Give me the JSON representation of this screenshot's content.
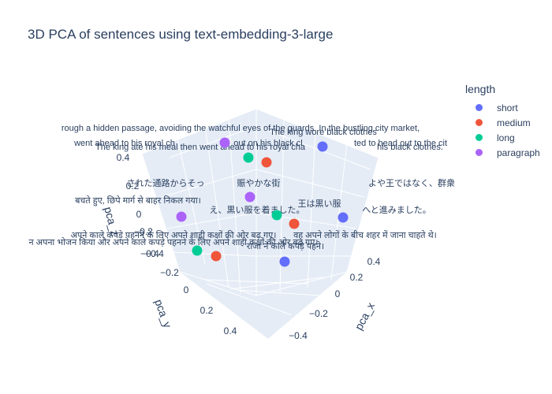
{
  "chart_data": {
    "type": "scatter",
    "title": "3D PCA of sentences using text-embedding-3-large",
    "xlabel": "pca_x",
    "ylabel": "pca_y",
    "zlabel": "pca_z",
    "x_ticks": [
      "0.4",
      "0.2",
      "0",
      "−0.2",
      "−0.4"
    ],
    "y_ticks": [
      "−0.4",
      "−0.2",
      "0",
      "0.2",
      "0.4"
    ],
    "z_ticks": [
      "0.4",
      "0.2",
      "0",
      "−0.2",
      "−0.4"
    ],
    "grid": true,
    "legend": {
      "title": "length",
      "placement": "right"
    },
    "series": [
      {
        "name": "short",
        "color": "#636efa",
        "points": [
          {
            "label": "The king wore black clothes"
          },
          {
            "label": "王は黒い服"
          },
          {
            "label": "राजा ने काले कपड़े पहने।"
          }
        ]
      },
      {
        "name": "medium",
        "color": "#EF553B",
        "points": [
          {
            "label": "out on his black cl"
          },
          {
            "label": "え、黒い服を着ました。"
          },
          {
            "label": "अपने काले कपड़े पहनने के लिए अपने शाही कक्षों की ओर बढ़ गए।"
          }
        ]
      },
      {
        "name": "long",
        "color": "#00cc96",
        "points": [
          {
            "label": "The king ate his meal then went ahead to his royal cha"
          },
          {
            "label": "賑やかな街"
          },
          {
            "label": "न अपना भोजन किया और अपने काले कपड़े पहनने के लिए अपने शाही कक्षों की ओर बढ़ गए।"
          }
        ]
      },
      {
        "name": "paragraph",
        "color": "#ab63fa",
        "points": [
          {
            "label": "rough a hidden passage, avoiding the watchful eyes of the guards. In the bustling city market,"
          },
          {
            "label": "された通路からそっ"
          },
          {
            "label": "बचते हुए, छिपे मार्ग से बाहर निकल गया।"
          }
        ]
      }
    ],
    "annotations": [
      "went ahead to his royal ch",
      "ted to head out to the cit",
      "his black clothes.",
      "よや王ではなく、群衆",
      "वह अपने लोगों के बीच शहर में जाना चाहते थे।",
      "へと進みました。"
    ]
  }
}
